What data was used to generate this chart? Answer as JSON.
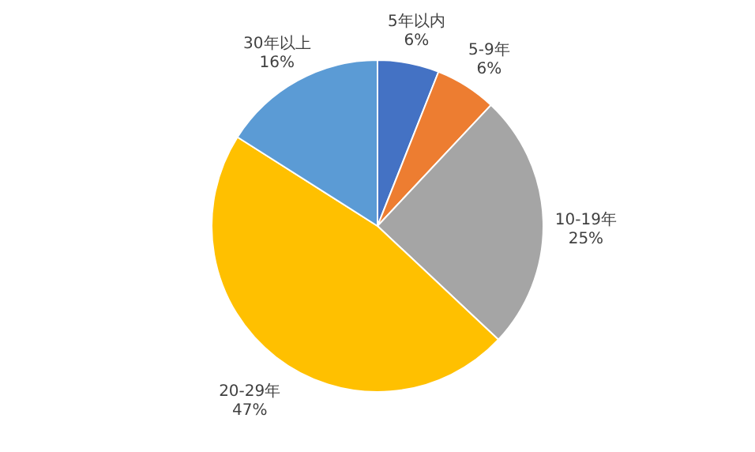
{
  "chart_data": {
    "type": "pie",
    "categories": [
      "5年以内",
      "5-9年",
      "10-19年",
      "20-29年",
      "30年以上"
    ],
    "values": [
      6,
      6,
      25,
      47,
      16
    ],
    "colors": [
      "#4472c4",
      "#ed7d31",
      "#a5a5a5",
      "#ffc000",
      "#5b9bd5"
    ],
    "value_labels": [
      "6%",
      "6%",
      "25%",
      "47%",
      "16%"
    ],
    "legend": false
  }
}
